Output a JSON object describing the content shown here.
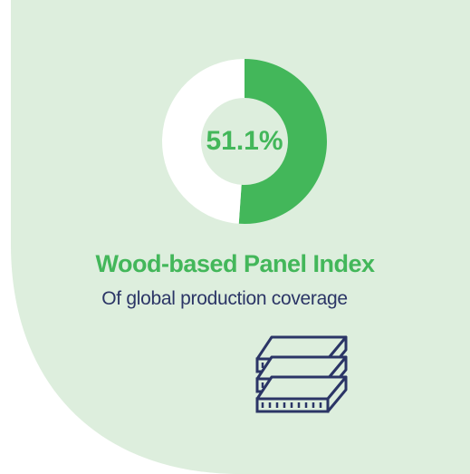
{
  "colors": {
    "background": "#ffffff",
    "card": "#ddeedd",
    "accent": "#43b75a",
    "remainder": "#ffffff",
    "text_secondary": "#2b3566",
    "icon": "#2b3566"
  },
  "chart_data": {
    "type": "pie",
    "style": "donut",
    "values": [
      51.1,
      48.9
    ],
    "center_label": "51.1%"
  },
  "title": "Wood-based Panel Index",
  "subtitle": "Of global production coverage",
  "icon": "stacked-wood-panels-icon"
}
